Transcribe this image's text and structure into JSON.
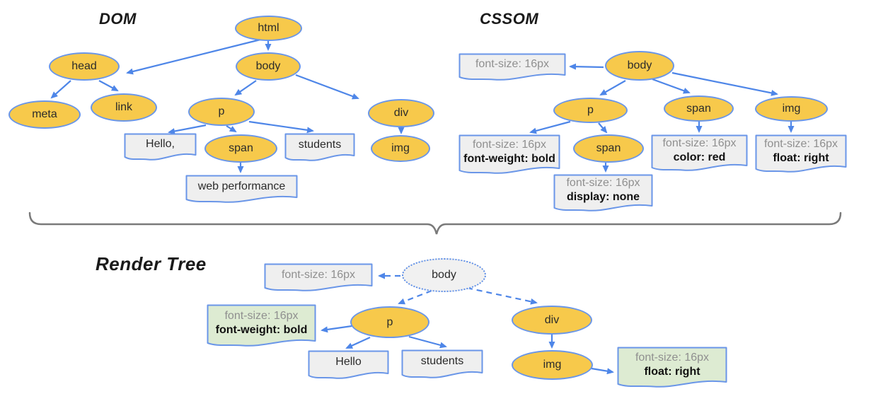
{
  "colors": {
    "node_fill": "#F7C94B",
    "node_border": "#6A96E8",
    "arrow": "#4E86E8",
    "brace": "#7A7A7A",
    "box_gray": "#EFEFEF",
    "box_green": "#DDEBD2",
    "muted_text": "#8F8F8F",
    "dark_text": "#2B2B2B"
  },
  "dom": {
    "title": "DOM",
    "nodes": {
      "html": "html",
      "head": "head",
      "body": "body",
      "meta": "meta",
      "link": "link",
      "p": "p",
      "span": "span",
      "div": "div",
      "img": "img"
    },
    "text_boxes": {
      "hello": "Hello,",
      "students": "students",
      "web_performance": "web performance"
    }
  },
  "cssom": {
    "title": "CSSOM",
    "nodes": {
      "body": "body",
      "p": "p",
      "span": "span",
      "span_child": "span",
      "img": "img"
    },
    "style_boxes": {
      "body_style": {
        "line1": "font-size: 16px"
      },
      "p_style": {
        "line1": "font-size: 16px",
        "line2": "font-weight: bold"
      },
      "span_child_style": {
        "line1": "font-size: 16px",
        "line2": "display: none"
      },
      "span_style": {
        "line1": "font-size: 16px",
        "line2": "color: red"
      },
      "img_style": {
        "line1": "font-size: 16px",
        "line2": "float: right"
      }
    }
  },
  "render_tree": {
    "title": "Render Tree",
    "nodes": {
      "body": "body",
      "p": "p",
      "div": "div",
      "img": "img"
    },
    "text_boxes": {
      "hello": "Hello",
      "students": "students"
    },
    "style_boxes": {
      "body_style": {
        "line1": "font-size: 16px"
      },
      "p_style": {
        "line1": "font-size: 16px",
        "line2": "font-weight: bold"
      },
      "img_style": {
        "line1": "font-size: 16px",
        "line2": "float: right"
      }
    }
  }
}
